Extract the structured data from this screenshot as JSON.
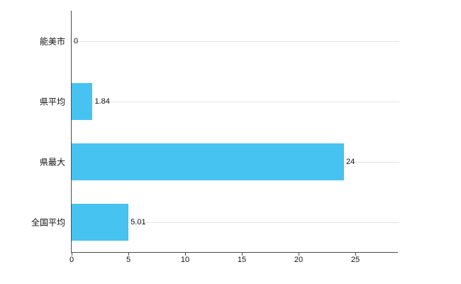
{
  "chart_data": {
    "type": "bar",
    "orientation": "horizontal",
    "title": "",
    "xlabel": "",
    "ylabel": "",
    "categories": [
      "能美市",
      "県平均",
      "県最大",
      "全国平均"
    ],
    "values": [
      0,
      1.84,
      24,
      5.01
    ],
    "value_labels": [
      "0",
      "1.84",
      "24",
      "5.01"
    ],
    "x_ticks": [
      0,
      5,
      10,
      15,
      20,
      25
    ],
    "xlim": [
      0,
      28.75
    ],
    "bar_color": "#46c3f1",
    "axis_color": "#4d4d4d",
    "gridline_color": "#e3e3e3",
    "grid": "horizontal lines at category centers",
    "legend_position": "none",
    "background": "#ffffff"
  }
}
